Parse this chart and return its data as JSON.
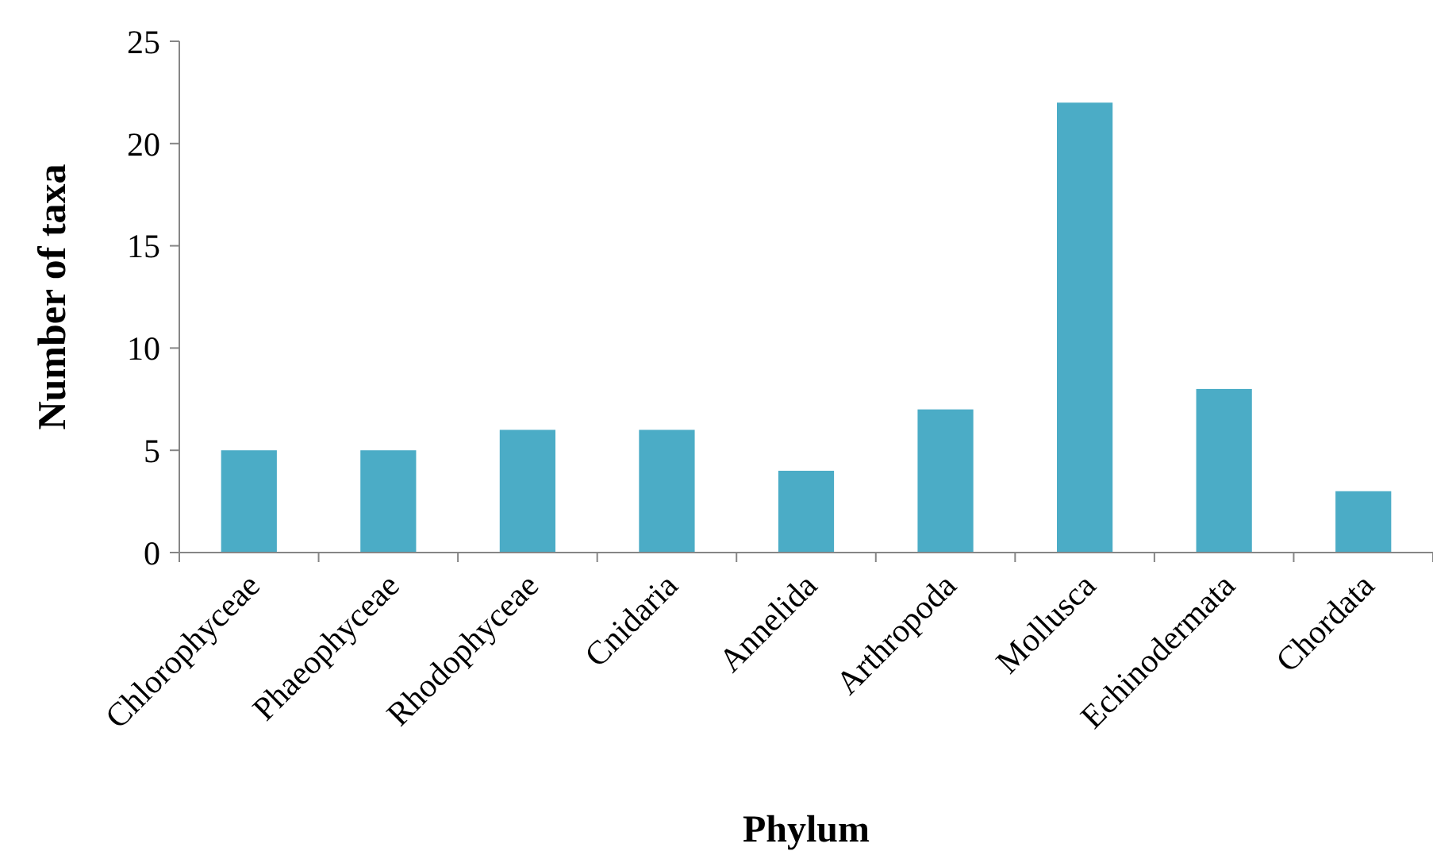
{
  "chart_data": {
    "type": "bar",
    "xlabel": "Phylum",
    "ylabel": "Number of taxa",
    "categories": [
      "Chlorophyceae",
      "Phaeophyceae",
      "Rhodophyceae",
      "Cnidaria",
      "Annelida",
      "Arthropoda",
      "Mollusca",
      "Echinodermata",
      "Chordata"
    ],
    "values": [
      5,
      5,
      6,
      6,
      4,
      7,
      22,
      8,
      3
    ],
    "color": "#4bacc6",
    "ylim": [
      0,
      25
    ],
    "yticks": [
      0,
      5,
      10,
      15,
      20,
      25
    ],
    "grid": false
  }
}
